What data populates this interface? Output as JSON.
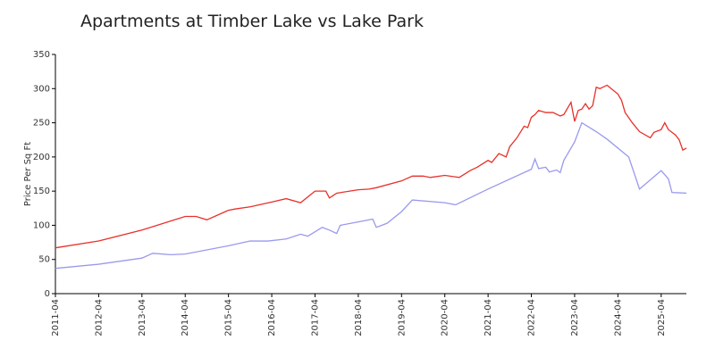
{
  "chart_data": {
    "type": "line",
    "title": "Apartments at Timber Lake vs Lake Park",
    "y_label": "Price Per Sq Ft",
    "xlim": [
      "2011-04",
      "2025-11"
    ],
    "xticks": [
      "2011-04",
      "2012-04",
      "2013-04",
      "2014-04",
      "2015-04",
      "2016-04",
      "2017-04",
      "2018-04",
      "2019-04",
      "2020-04",
      "2021-04",
      "2022-04",
      "2023-04",
      "2024-04",
      "2025-04"
    ],
    "ylim": [
      0,
      350
    ],
    "yticks": [
      0,
      50,
      100,
      150,
      200,
      250,
      300,
      350
    ],
    "grid": false,
    "series": [
      {
        "color": "#e8302a",
        "x": [
          "2011-04",
          "2012-04",
          "2013-04",
          "2014-04",
          "2014-07",
          "2014-10",
          "2015-04",
          "2015-06",
          "2015-10",
          "2016-04",
          "2016-08",
          "2016-12",
          "2017-04",
          "2017-07",
          "2017-08",
          "2017-10",
          "2018-04",
          "2018-07",
          "2018-09",
          "2019-04",
          "2019-07",
          "2019-10",
          "2019-12",
          "2020-04",
          "2020-08",
          "2020-11",
          "2021-01",
          "2021-04",
          "2021-05",
          "2021-07",
          "2021-09",
          "2021-10",
          "2021-12",
          "2022-02",
          "2022-03",
          "2022-04",
          "2022-05",
          "2022-06",
          "2022-08",
          "2022-10",
          "2022-12",
          "2023-01",
          "2023-03",
          "2023-04",
          "2023-05",
          "2023-06",
          "2023-07",
          "2023-08",
          "2023-09",
          "2023-10",
          "2023-11",
          "2024-01",
          "2024-04",
          "2024-05",
          "2024-06",
          "2024-08",
          "2024-10",
          "2025-01",
          "2025-02",
          "2025-04",
          "2025-05",
          "2025-06",
          "2025-08",
          "2025-09",
          "2025-10",
          "2025-11"
        ],
        "values": [
          67,
          77,
          93,
          113,
          113,
          108,
          122,
          124,
          127,
          134,
          139,
          133,
          150,
          150,
          140,
          147,
          152,
          153,
          155,
          165,
          172,
          172,
          170,
          173,
          170,
          180,
          185,
          195,
          192,
          205,
          200,
          215,
          228,
          245,
          243,
          258,
          262,
          268,
          265,
          265,
          260,
          262,
          280,
          252,
          268,
          270,
          278,
          270,
          275,
          302,
          300,
          305,
          292,
          283,
          265,
          250,
          237,
          228,
          236,
          240,
          250,
          240,
          232,
          225,
          210,
          213
        ]
      },
      {
        "color": "#9999ee",
        "x": [
          "2011-04",
          "2012-04",
          "2013-04",
          "2013-07",
          "2013-12",
          "2014-04",
          "2015-04",
          "2015-10",
          "2016-03",
          "2016-08",
          "2016-12",
          "2017-02",
          "2017-06",
          "2017-08",
          "2017-10",
          "2017-11",
          "2018-04",
          "2018-08",
          "2018-09",
          "2018-12",
          "2019-04",
          "2019-07",
          "2020-04",
          "2020-07",
          "2021-04",
          "2022-04",
          "2022-05",
          "2022-06",
          "2022-08",
          "2022-09",
          "2022-11",
          "2022-12",
          "2023-01",
          "2023-04",
          "2023-06",
          "2023-10",
          "2024-01",
          "2024-07",
          "2024-10",
          "2025-04",
          "2025-06",
          "2025-07",
          "2025-11"
        ],
        "values": [
          37,
          43,
          52,
          59,
          57,
          58,
          70,
          77,
          77,
          80,
          87,
          84,
          97,
          93,
          88,
          100,
          105,
          109,
          97,
          103,
          120,
          137,
          133,
          130,
          153,
          182,
          197,
          183,
          185,
          178,
          181,
          177,
          195,
          222,
          250,
          237,
          226,
          200,
          153,
          180,
          168,
          148,
          147
        ]
      }
    ]
  }
}
